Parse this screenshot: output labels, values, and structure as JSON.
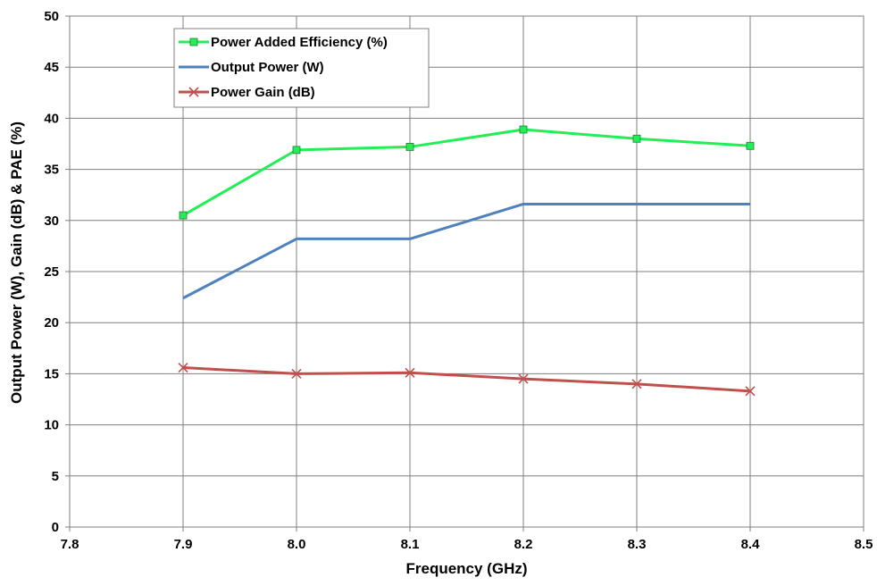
{
  "chart_data": {
    "type": "line",
    "title": "",
    "xlabel": "Frequency (GHz)",
    "ylabel": "Output Power (W), Gain (dB) & PAE (%)",
    "xlim": [
      7.8,
      8.5
    ],
    "ylim": [
      0,
      50
    ],
    "x_ticks": [
      "7.8",
      "7.9",
      "8.0",
      "8.1",
      "8.2",
      "8.3",
      "8.4",
      "8.5"
    ],
    "y_ticks": [
      "0",
      "5",
      "10",
      "15",
      "20",
      "25",
      "30",
      "35",
      "40",
      "45",
      "50"
    ],
    "grid": true,
    "legend_position": "top-left",
    "x": [
      7.9,
      8.0,
      8.1,
      8.2,
      8.3,
      8.4
    ],
    "series": [
      {
        "name": "Power Added Efficiency (%)",
        "values": [
          30.5,
          36.9,
          37.2,
          38.9,
          38.0,
          37.3
        ],
        "color": "#22ee55",
        "marker": "square"
      },
      {
        "name": "Output Power (W)",
        "values": [
          22.4,
          28.2,
          28.2,
          31.6,
          31.6,
          31.6
        ],
        "color": "#4f81bd",
        "marker": "none"
      },
      {
        "name": "Power Gain (dB)",
        "values": [
          15.6,
          15.0,
          15.1,
          14.5,
          14.0,
          13.3
        ],
        "color": "#c0504d",
        "marker": "x"
      }
    ]
  }
}
